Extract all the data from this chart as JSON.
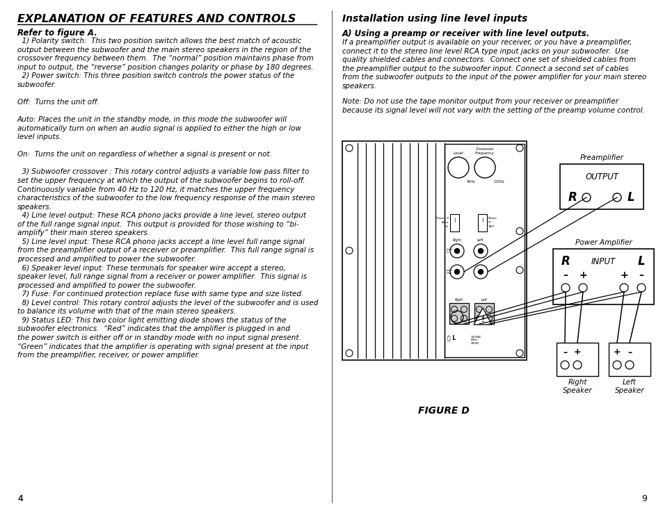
{
  "page_bg": "#ffffff",
  "title": "EXPLANATION OF FEATURES AND CONTROLS",
  "refer": "Refer to figure A.",
  "right_title": "Installation using line level inputs",
  "right_sub": "A) Using a preamp or receiver with line level outputs.",
  "right_text1": "If a preamplifier output is available on your receiver, or you have a preamplifier,\nconnect it to the stereo line level RCA type input jacks on your subwoofer.  Use\nquality shielded cables and connectors.  Connect one set of shielded cables from\nthe preamplifier output to the subwoofer input. Connect a second set of cables\nfrom the subwoofer outputs to the input of the power amplifier for your main stereo\nspeakers.",
  "right_note": "Note: Do not use the tape monitor output from your receiver or preamplifier\nbecause its signal level will not vary with the setting of the preamp volume control.",
  "body_left": "  1) Polarity switch:  This two position switch allows the best match of acoustic\noutput between the subwoofer and the main stereo speakers in the region of the\ncrossover frequency between them.  The “normal” position maintains phase from\ninput to output, the “reverse” position changes polarity or phase by 180 degrees.\n  2) Power switch: This three position switch controls the power status of the\nsubwoofer.\n\nOff:  Turns the unit off.\n\nAuto: Places the unit in the standby mode, in this mode the subwoofer will\nautomatically turn on when an audio signal is applied to either the high or low\nlevel inputs.\n\nOn:  Turns the unit on regardless of whether a signal is present or not.\n\n  3) Subwoofer crossover : This rotary control adjusts a variable low pass filter to\nset the upper frequency at which the output of the subwoofer begins to roll-off.\nContinuously variable from 40 Hz to 120 Hz, it matches the upper frequency\ncharacteristics of the subwoofer to the low frequency response of the main stereo\nspeakers.\n  4) Line level output: These RCA phono jacks provide a line level, stereo output\nof the full range signal input.  This output is provided for those wishing to “bi-\namplify” their main stereo speakers.\n  5) Line level input: These RCA phono jacks accept a line level full range signal\nfrom the preamplifier output of a receiver or preamplifier.  This full range signal is\nprocessed and amplified to power the subwoofer.\n  6) Speaker level input: These terminals for speaker wire accept a stereo,\nspeaker level, full range signal from a receiver or power amplifier.  This signal is\nprocessed and amplified to power the subwoofer.\n  7) Fuse: For continued protection replace fuse with same type and size listed.\n  8) Level control: This rotary control adjusts the level of the subwoofer and is used\nto balance its volume with that of the main stereo speakers.\n  9) Status LED: This two color light emitting diode shows the status of the\nsubwoofer electronics.  “Red” indicates that the amplifier is plugged in and\nthe power switch is either off or in standby mode with no input signal present.\n“Green” indicates that the amplifier is operating with signal present at the input\nfrom the preamplifier, receiver, or power amplifier.",
  "figure_label": "FIGURE D",
  "page_left": "4",
  "page_right": "9"
}
